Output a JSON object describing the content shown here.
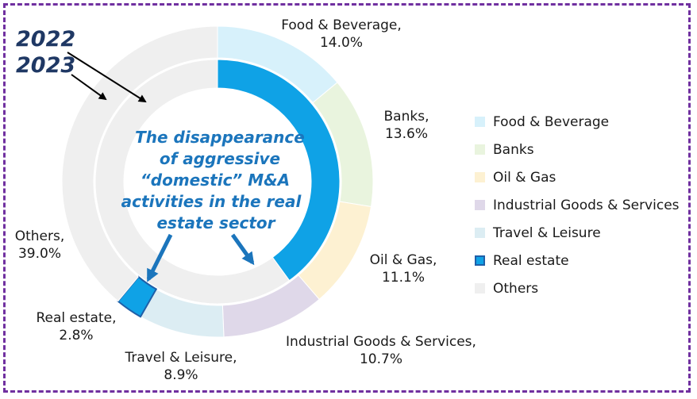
{
  "chart_data": {
    "type": "pie",
    "subtype": "nested-donut",
    "rings": [
      {
        "name": "2022",
        "slices": [
          {
            "label": "Food & Beverage",
            "value": 14.0,
            "display": "14.0%"
          },
          {
            "label": "Banks",
            "value": 13.6,
            "display": "13.6%"
          },
          {
            "label": "Oil & Gas",
            "value": 11.1,
            "display": "11.1%"
          },
          {
            "label": "Industrial Goods & Services",
            "value": 10.7,
            "display": "10.7%"
          },
          {
            "label": "Travel & Leisure",
            "value": 8.9,
            "display": "8.9%"
          },
          {
            "label": "Real estate",
            "value": 2.8,
            "display": "2.8%"
          },
          {
            "label": "Others",
            "value": 39.0,
            "display": "39.0%"
          }
        ]
      },
      {
        "name": "2023",
        "slices": [
          {
            "label": "Real estate",
            "value": 40.0
          },
          {
            "label": "Others",
            "value": 60.0
          }
        ]
      }
    ],
    "legend_position": "right",
    "legend": [
      {
        "label": "Food & Beverage",
        "color": "#d7f1fb"
      },
      {
        "label": "Banks",
        "color": "#e9f4de"
      },
      {
        "label": "Oil & Gas",
        "color": "#fdf1d2"
      },
      {
        "label": "Industrial Goods & Services",
        "color": "#dfd8e9"
      },
      {
        "label": "Travel & Leisure",
        "color": "#dcedf3"
      },
      {
        "label": "Real estate",
        "color": "#0fa2e6",
        "border": "#1f5fa8"
      },
      {
        "label": "Others",
        "color": "#efefef"
      }
    ],
    "colors": {
      "Food & Beverage": "#d7f1fb",
      "Banks": "#e9f4de",
      "Oil & Gas": "#fdf1d2",
      "Industrial Goods & Services": "#dfd8e9",
      "Travel & Leisure": "#dcedf3",
      "Real estate": "#0fa2e6",
      "Others": "#efefef",
      "frame": "#7030a0",
      "year_text": "#1f3864",
      "annotation": "#1b75bc"
    },
    "year_labels": [
      "2022",
      "2023"
    ],
    "annotation": [
      "The disappearance",
      "of aggressive",
      "“domestic” M&A",
      "activities in the real",
      "estate sector"
    ]
  }
}
